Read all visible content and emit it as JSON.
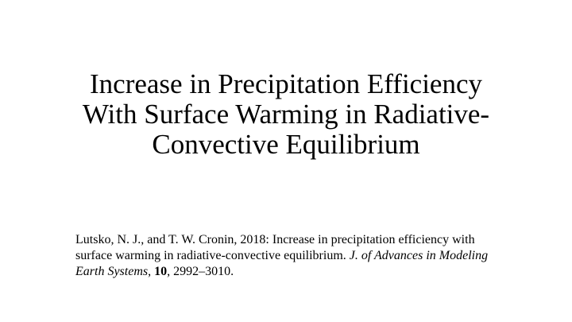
{
  "slide": {
    "title_line1": "Increase in Precipitation Efficiency",
    "title_line2": "With Surface Warming in Radiative-",
    "title_line3": "Convective Equilibrium",
    "citation": {
      "authors_and_title": "Lutsko, N. J., and T. W. Cronin, 2018: Increase in precipitation efficiency with surface warming in radiative-convective equilibrium. ",
      "journal": "J. of Advances in Modeling Earth Systems",
      "sep1": ", ",
      "volume": "10",
      "pages": ", 2992–3010."
    }
  }
}
